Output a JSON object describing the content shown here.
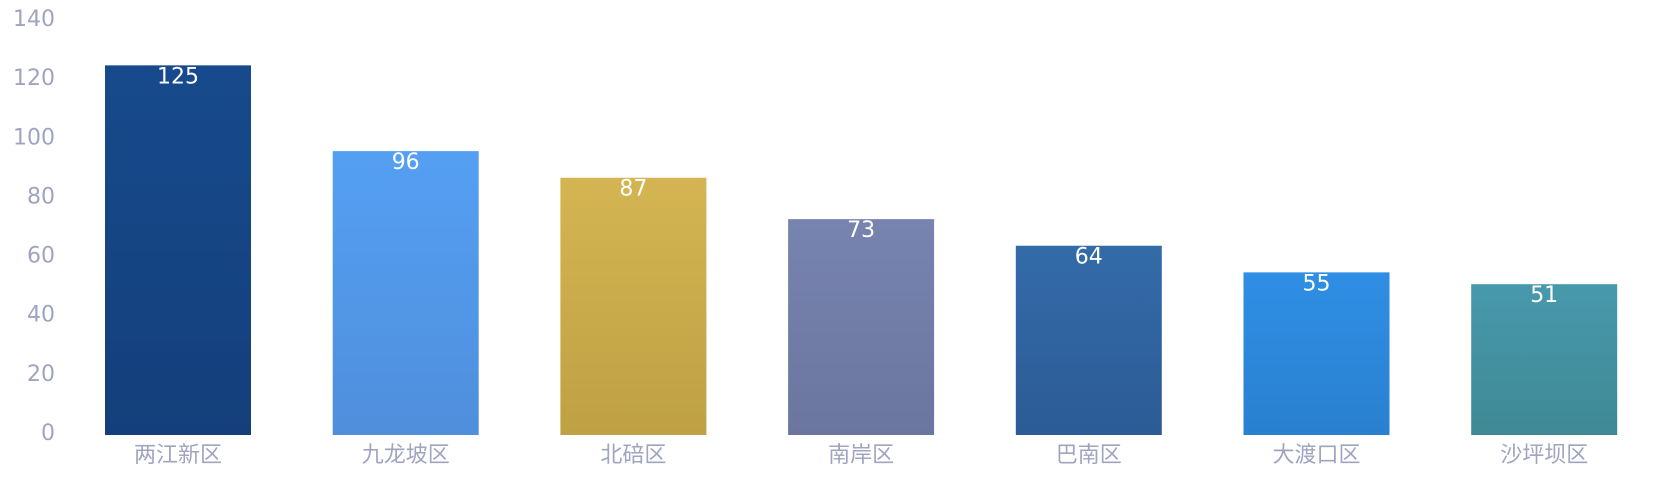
{
  "chart_data": {
    "type": "bar",
    "title": "",
    "xlabel": "",
    "ylabel": "",
    "categories": [
      "两江新区",
      "九龙坡区",
      "北碚区",
      "南岸区",
      "巴南区",
      "大渡口区",
      "沙坪坝区"
    ],
    "values": [
      125,
      96,
      87,
      73,
      64,
      55,
      51
    ],
    "data_labels": [
      "125",
      "96",
      "87",
      "73",
      "64",
      "55",
      "51"
    ],
    "ylim": [
      0,
      140
    ],
    "yticks": [
      "0",
      "20",
      "40",
      "60",
      "80",
      "100",
      "120",
      "140"
    ],
    "grid": false,
    "legend": "none",
    "bar_colors": [
      [
        "#174a8c",
        "#143f7b"
      ],
      [
        "#559ff3",
        "#4f8fdc"
      ],
      [
        "#d4b552",
        "#bea144"
      ],
      [
        "#7784af",
        "#6b769f"
      ],
      [
        "#336ba9",
        "#2c5b95"
      ],
      [
        "#2f8fe4",
        "#2a80d0"
      ],
      [
        "#4799ac",
        "#3f8995"
      ]
    ],
    "axis_label_color": "#a0a4c0",
    "data_label_color": "#ffffff"
  }
}
